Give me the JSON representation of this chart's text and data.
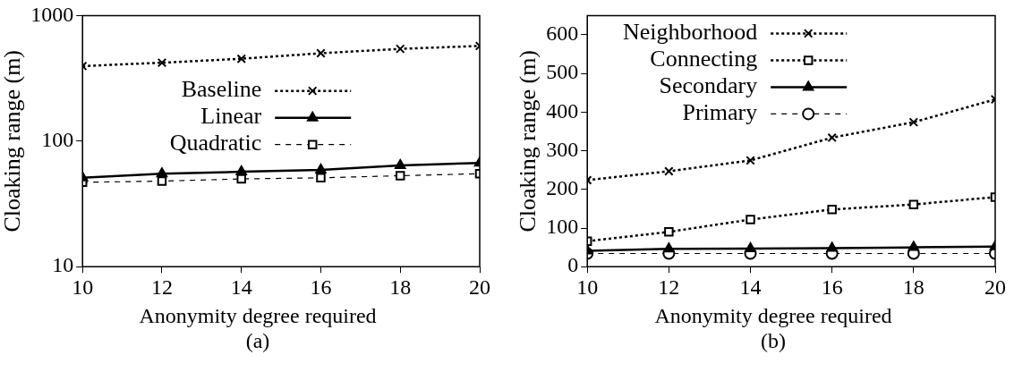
{
  "chart_data": [
    {
      "type": "line",
      "xlabel": "Anonymity degree required",
      "ylabel": "Cloaking range (m)",
      "annotations": [
        "(a)"
      ],
      "x": [
        10,
        12,
        14,
        16,
        18,
        20
      ],
      "log": "y",
      "xlim": [
        10,
        20
      ],
      "xticks": [
        10,
        12,
        14,
        16,
        18,
        20
      ],
      "ylim": [
        10,
        1000
      ],
      "yticks": [
        10,
        100,
        1000
      ],
      "grid": false,
      "legend": "left",
      "series": [
        {
          "name": "Baseline",
          "color": "#000000",
          "marker": "cross",
          "line_style": "dotted",
          "values": [
            396,
            421,
            453,
            501,
            543,
            573
          ]
        },
        {
          "name": "Linear",
          "color": "#000000",
          "marker": "triangle",
          "line_style": "solid",
          "values": [
            51,
            55,
            57,
            59,
            64,
            67
          ]
        },
        {
          "name": "Quadratic",
          "color": "#000000",
          "marker": "square",
          "line_style": "dashed",
          "values": [
            47,
            48,
            50,
            51,
            53,
            55
          ]
        }
      ]
    },
    {
      "type": "line",
      "xlabel": "Anonymity degree required",
      "ylabel": "Cloaking range (m)",
      "annotations": [
        "(b)"
      ],
      "x": [
        10,
        12,
        14,
        16,
        18,
        20
      ],
      "xlim": [
        10,
        20
      ],
      "xticks": [
        10,
        12,
        14,
        16,
        18,
        20
      ],
      "ylim": [
        0,
        650
      ],
      "yticks": [
        0,
        100,
        200,
        300,
        400,
        500,
        600
      ],
      "grid": false,
      "legend": "top left",
      "series": [
        {
          "name": "Neighborhood",
          "color": "#000000",
          "marker": "cross",
          "line_style": "dotted",
          "values": [
            224,
            247,
            275,
            334,
            374,
            433
          ]
        },
        {
          "name": "Connecting",
          "color": "#000000",
          "marker": "square",
          "line_style": "dotted",
          "values": [
            66,
            90,
            122,
            148,
            161,
            180
          ]
        },
        {
          "name": "Secondary",
          "color": "#000000",
          "marker": "triangle",
          "line_style": "solid",
          "values": [
            41,
            46,
            47,
            48,
            50,
            52
          ]
        },
        {
          "name": "Primary",
          "color": "#000000",
          "marker": "circle",
          "line_style": "dashed",
          "values": [
            34,
            34,
            34,
            34,
            34,
            34
          ]
        }
      ]
    }
  ]
}
